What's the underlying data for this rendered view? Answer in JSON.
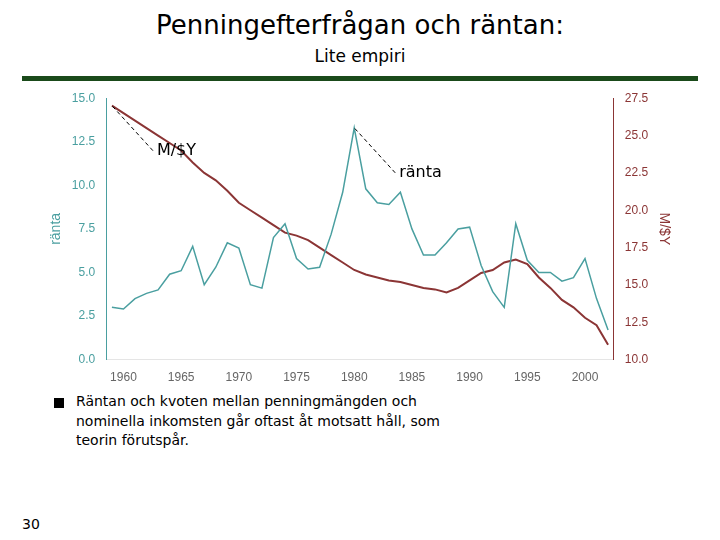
{
  "chart_data": {
    "type": "line",
    "title": "Penningefterfrågan och räntan:",
    "subtitle": "Lite empiri",
    "x": [
      1959,
      1960,
      1961,
      1962,
      1963,
      1964,
      1965,
      1966,
      1967,
      1968,
      1969,
      1970,
      1971,
      1972,
      1973,
      1974,
      1975,
      1976,
      1977,
      1978,
      1979,
      1980,
      1981,
      1982,
      1983,
      1984,
      1985,
      1986,
      1987,
      1988,
      1989,
      1990,
      1991,
      1992,
      1993,
      1994,
      1995,
      1996,
      1997,
      1998,
      1999,
      2000,
      2001,
      2002
    ],
    "xlim": [
      1958.5,
      2002.5
    ],
    "xticks": [
      1960,
      1965,
      1970,
      1975,
      1980,
      1985,
      1990,
      1995,
      2000
    ],
    "ylabel": "ränta",
    "y2label": "M/$Y",
    "ylim": [
      0,
      15
    ],
    "yticks": [
      {
        "value": 0,
        "label": "0.0"
      },
      2.5,
      {
        "value": 5,
        "label": "5.0"
      },
      7.5,
      {
        "value": 10,
        "label": "10.0"
      },
      12.5,
      {
        "value": 15,
        "label": "15.0"
      }
    ],
    "y2lim": [
      10,
      27.5
    ],
    "y2ticks": [
      {
        "value": 10,
        "label": "10.0"
      },
      12.5,
      {
        "value": 15,
        "label": "15.0"
      },
      17.5,
      {
        "value": 20,
        "label": "20.0"
      },
      22.5,
      {
        "value": 25,
        "label": "25.0"
      },
      27.5
    ],
    "series": [
      {
        "name": "ränta",
        "color": "#4a9fa0",
        "values": [
          3.0,
          2.9,
          3.5,
          3.8,
          4.0,
          4.9,
          5.1,
          6.5,
          4.3,
          5.3,
          6.7,
          6.4,
          4.3,
          4.1,
          7.0,
          7.8,
          5.8,
          5.2,
          5.3,
          7.2,
          9.6,
          13.3,
          9.8,
          9.0,
          8.9,
          9.6,
          7.5,
          6.0,
          6.0,
          6.7,
          7.5,
          7.6,
          5.4,
          3.9,
          3.0,
          7.8,
          5.7,
          5.0,
          5.0,
          4.5,
          4.7,
          5.8,
          3.5,
          1.7
        ]
      },
      {
        "name": "M/$Y",
        "color": "#8b3535",
        "axis": "y2",
        "values": [
          27.0,
          26.5,
          26.0,
          25.5,
          25.0,
          24.5,
          24.0,
          23.2,
          22.5,
          22.0,
          21.3,
          20.5,
          20.0,
          19.5,
          19.0,
          18.5,
          18.3,
          18.0,
          17.5,
          17.0,
          16.5,
          16.0,
          15.7,
          15.5,
          15.3,
          15.2,
          15.0,
          14.8,
          14.7,
          14.5,
          14.8,
          15.3,
          15.8,
          16.0,
          16.5,
          16.7,
          16.4,
          15.5,
          14.8,
          14.0,
          13.5,
          12.8,
          12.3,
          11.0
        ]
      }
    ],
    "annotations": [
      {
        "text": "M/$Y",
        "series": "M/$Y"
      },
      {
        "text": "ränta",
        "series": "ränta"
      }
    ],
    "caption": "Räntan och kvoten mellan penningmängden och\nnominella inkomsten går oftast åt motsatt håll, som\nteorin förutspår.",
    "page_number": "30",
    "grid": false,
    "legend": false
  }
}
